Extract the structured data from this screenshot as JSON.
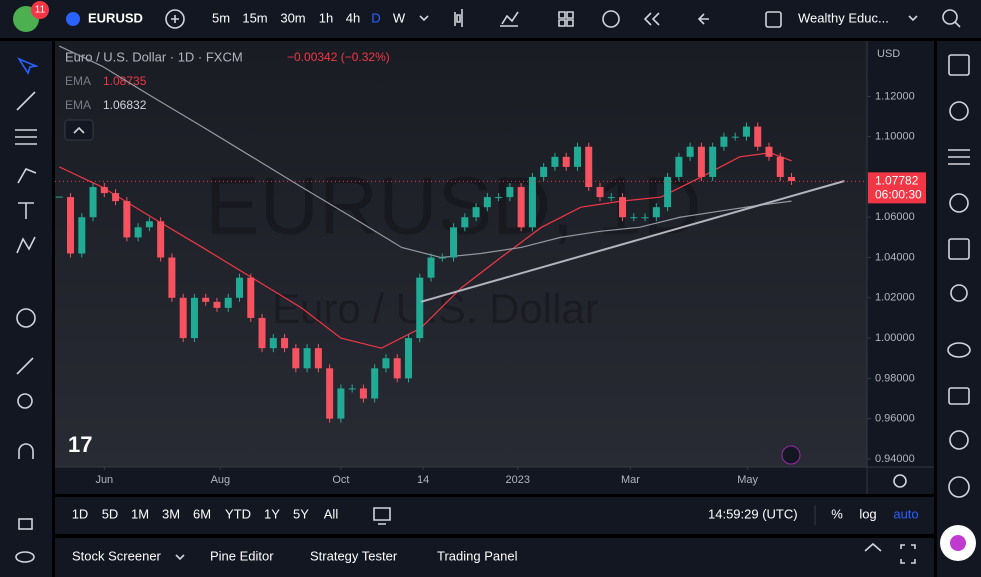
{
  "header": {
    "badge": "11",
    "symbol": "EURUSD",
    "intervals": [
      "5m",
      "15m",
      "30m",
      "1h",
      "4h",
      "D",
      "W"
    ],
    "layout_name": "Wealthy Educ..."
  },
  "chart_data": {
    "type": "candlestick",
    "title": "Euro / U.S. Dollar · 1D · FXCM",
    "change": "−0.00342 (−0.32%)",
    "watermark": "EURUSD, 1D",
    "watermark_subtitle": "Euro / U.S. Dollar",
    "currency": "USD",
    "up_color": "#22ab94",
    "down_color": "#f7525f",
    "closes": [
      1.07,
      1.042,
      1.06,
      1.075,
      1.072,
      1.068,
      1.05,
      1.055,
      1.058,
      1.04,
      1.02,
      1.0,
      1.02,
      1.018,
      1.015,
      1.02,
      1.03,
      1.01,
      0.995,
      1.0,
      0.995,
      0.985,
      0.995,
      0.985,
      0.96,
      0.975,
      0.975,
      0.97,
      0.985,
      0.99,
      0.98,
      1.0,
      1.03,
      1.04,
      1.04,
      1.055,
      1.06,
      1.065,
      1.07,
      1.07,
      1.075,
      1.055,
      1.08,
      1.085,
      1.09,
      1.085,
      1.095,
      1.075,
      1.07,
      1.07,
      1.06,
      1.06,
      1.06,
      1.065,
      1.08,
      1.09,
      1.095,
      1.08,
      1.095,
      1.1,
      1.1,
      1.105,
      1.095,
      1.09,
      1.08,
      1.078
    ],
    "indicators": [
      {
        "name": "EMA",
        "last": 1.08735,
        "color": "#f23645",
        "x": [
          0,
          3.8,
          8.2,
          12.7,
          17.1,
          21.5,
          25,
          28.6,
          32.1,
          35.7,
          39.2,
          42.8,
          46.3,
          49.9,
          53.4,
          57,
          60.4,
          63.1,
          65
        ],
        "values": [
          1.085,
          1.075,
          1.06,
          1.045,
          1.03,
          1.015,
          1.0,
          0.995,
          1.005,
          1.025,
          1.04,
          1.055,
          1.065,
          1.068,
          1.07,
          1.08,
          1.09,
          1.092,
          1.088
        ]
      },
      {
        "name": "EMA",
        "last": 1.06832,
        "color": "#9598a1",
        "x": [
          0,
          3.8,
          8.2,
          12.7,
          17.1,
          21.5,
          26,
          30.4,
          33.9,
          37.4,
          41,
          44.5,
          48,
          51.5,
          55.1,
          58.6,
          62.2,
          65
        ],
        "values": [
          1.145,
          1.135,
          1.12,
          1.105,
          1.09,
          1.075,
          1.06,
          1.045,
          1.04,
          1.042,
          1.045,
          1.05,
          1.053,
          1.055,
          1.06,
          1.063,
          1.066,
          1.068
        ]
      }
    ],
    "trendline": {
      "x": [
        32.1,
        69.7
      ],
      "y": [
        1.018,
        1.078
      ]
    },
    "last_price": 1.07782,
    "countdown": "06:00:30",
    "xlim": [
      -0.2,
      71.7
    ],
    "xticks": [
      {
        "value": 4,
        "label": "Jun"
      },
      {
        "value": 14.3,
        "label": "Aug"
      },
      {
        "value": 25,
        "label": "Oct"
      },
      {
        "value": 32.3,
        "label": "14"
      },
      {
        "value": 40.7,
        "label": "2023"
      },
      {
        "value": 50.7,
        "label": "Mar"
      },
      {
        "value": 61.1,
        "label": "May"
      }
    ],
    "ylim": [
      0.936,
      1.147
    ],
    "yticks": [
      {
        "value": 0.94,
        "label": "0.94000"
      },
      {
        "value": 0.96,
        "label": "0.96000"
      },
      {
        "value": 0.98,
        "label": "0.98000"
      },
      {
        "value": 1.0,
        "label": "1.00000"
      },
      {
        "value": 1.02,
        "label": "1.02000"
      },
      {
        "value": 1.04,
        "label": "1.04000"
      },
      {
        "value": 1.06,
        "label": "1.06000"
      },
      {
        "value": 1.1,
        "label": "1.10000"
      },
      {
        "value": 1.12,
        "label": "1.12000"
      }
    ]
  },
  "footer": {
    "ranges": [
      "1D",
      "5D",
      "1M",
      "3M",
      "6M",
      "YTD",
      "1Y",
      "5Y",
      "All"
    ],
    "clock": "14:59:29 (UTC)",
    "scale_options": [
      "%",
      "log",
      "auto"
    ]
  },
  "bottom_panel": {
    "tabs": [
      "Stock Screener",
      "Pine Editor",
      "Strategy Tester",
      "Trading Panel"
    ]
  }
}
